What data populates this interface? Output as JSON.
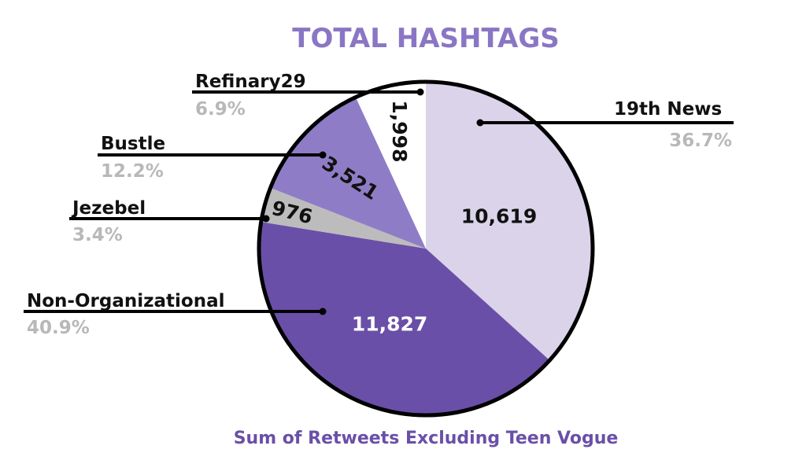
{
  "chart_data": {
    "type": "pie",
    "title": "TOTAL HASHTAGS",
    "subtitle": "Sum of Retweets Excluding Teen Vogue",
    "slices": [
      {
        "label": "19th News",
        "value": 10619,
        "value_label": "10,619",
        "percent": "36.7%",
        "color": "#dbd3ea"
      },
      {
        "label": "Non-Organizational",
        "value": 11827,
        "value_label": "11,827",
        "percent": "40.9%",
        "color": "#6a4fa8"
      },
      {
        "label": "Jezebel",
        "value": 976,
        "value_label": "976",
        "percent": "3.4%",
        "color": "#bcbcbc"
      },
      {
        "label": "Bustle",
        "value": 3521,
        "value_label": "3,521",
        "percent": "12.2%",
        "color": "#8f7cc6"
      },
      {
        "label": "Refinary29",
        "value": 1998,
        "value_label": "1,998",
        "percent": "6.9%",
        "color": "#ffffff"
      }
    ],
    "colors": {
      "title": "#8a76c4",
      "subtitle": "#6a4fa8",
      "percent": "#b8b8b8",
      "label": "#111111"
    }
  }
}
